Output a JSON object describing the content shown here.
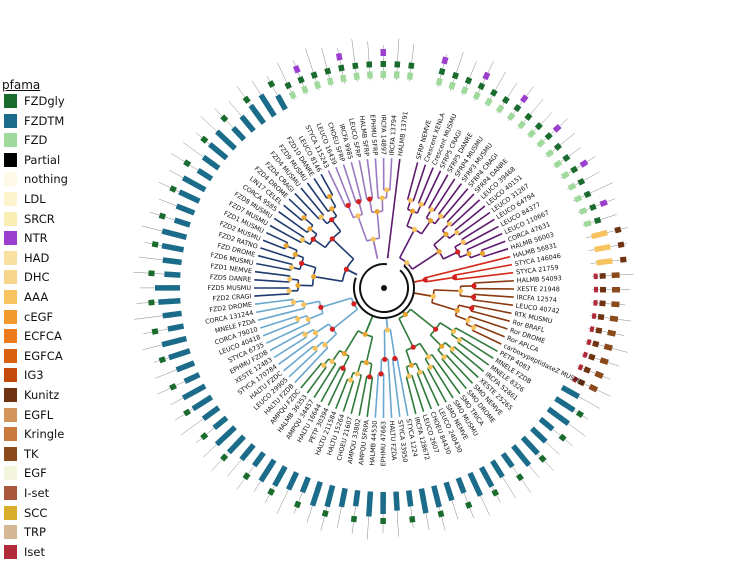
{
  "legend": {
    "title": "pfama",
    "items": [
      {
        "label": "FZDgly",
        "color": "#1a6b2e"
      },
      {
        "label": "FZDTM",
        "color": "#1b6b8a"
      },
      {
        "label": "FZD",
        "color": "#9fd99b"
      },
      {
        "label": "Partial",
        "color": "#000000"
      },
      {
        "label": "nothing",
        "color": "#fdf9e6"
      },
      {
        "label": "LDL",
        "color": "#fdf3cc"
      },
      {
        "label": "SRCR",
        "color": "#fbeeb5"
      },
      {
        "label": "NTR",
        "color": "#9b3fcf"
      },
      {
        "label": "HAD",
        "color": "#f8e0a0"
      },
      {
        "label": "DHC",
        "color": "#f7d58a"
      },
      {
        "label": "AAA",
        "color": "#f6c35e"
      },
      {
        "label": "cEGF",
        "color": "#f39a2e"
      },
      {
        "label": "ECFCA",
        "color": "#ec7b1c"
      },
      {
        "label": "EGFCA",
        "color": "#d9600f"
      },
      {
        "label": "IG3",
        "color": "#c34a08"
      },
      {
        "label": "Kunitz",
        "color": "#6e3310"
      },
      {
        "label": "EGFL",
        "color": "#d4955a"
      },
      {
        "label": "Kringle",
        "color": "#c97a3c"
      },
      {
        "label": "TK",
        "color": "#8a4a1c"
      },
      {
        "label": "EGF",
        "color": "#f2f4dc"
      },
      {
        "label": "I-set",
        "color": "#a9573a"
      },
      {
        "label": "SCC",
        "color": "#d7ad2a"
      },
      {
        "label": "TRP",
        "color": "#d4b896"
      },
      {
        "label": "Iset",
        "color": "#b02a37"
      }
    ]
  },
  "tree": {
    "clades": [
      {
        "name": "purple-sfrp",
        "color": "#5e1a6e"
      },
      {
        "name": "lavender-sfrp",
        "color": "#9a78c0"
      },
      {
        "name": "navy-fzd",
        "color": "#1f3a6e"
      },
      {
        "name": "lightblue-fzd",
        "color": "#6aa7cf"
      },
      {
        "name": "green-fzd",
        "color": "#2f7a3a"
      },
      {
        "name": "brown-ror",
        "color": "#8a3a10"
      },
      {
        "name": "red-outgroup",
        "color": "#d42a1a"
      }
    ],
    "leaves": [
      {
        "label": "SFRP NEMVE",
        "clade": 0
      },
      {
        "label": "Crescent XENLA",
        "clade": 0
      },
      {
        "label": "Crescent MUSMU",
        "clade": 0
      },
      {
        "label": "SFRP5 CRAGI",
        "clade": 0
      },
      {
        "label": "SFRP5 DANRE",
        "clade": 0
      },
      {
        "label": "SFRP4 MUSMU",
        "clade": 0
      },
      {
        "label": "SFRP3 MUSMU",
        "clade": 0
      },
      {
        "label": "SFRP4 CRAGI",
        "clade": 0
      },
      {
        "label": "SFRP4 DANRE",
        "clade": 0
      },
      {
        "label": "LEUCO 39468",
        "clade": 0
      },
      {
        "label": "LEUCO 40151",
        "clade": 0
      },
      {
        "label": "LEUCO 31267",
        "clade": 0
      },
      {
        "label": "LEUCO 64794",
        "clade": 0
      },
      {
        "label": "LEUCO 84377",
        "clade": 0
      },
      {
        "label": "LEUCO 110667",
        "clade": 0
      },
      {
        "label": "CORCA 47631",
        "clade": 0
      },
      {
        "label": "HALMB 56003",
        "clade": 0
      },
      {
        "label": "HALMB 56831",
        "clade": 6
      },
      {
        "label": "STYCA 146046",
        "clade": 6
      },
      {
        "label": "STYCA 21759",
        "clade": 6
      },
      {
        "label": "HALMB 54093",
        "clade": 5
      },
      {
        "label": "XESTE 21948",
        "clade": 5
      },
      {
        "label": "IRCFA 12574",
        "clade": 5
      },
      {
        "label": "LEUCO 40742",
        "clade": 5
      },
      {
        "label": "RTK MUSMU",
        "clade": 5
      },
      {
        "label": "Ror BRAFL",
        "clade": 5
      },
      {
        "label": "Ror DROME",
        "clade": 5
      },
      {
        "label": "Ror APLCA",
        "clade": 5
      },
      {
        "label": "carboxypeptidaseZ MUSMU",
        "clade": 5
      },
      {
        "label": "PETP 4083",
        "clade": 4
      },
      {
        "label": "MNELE FZDB",
        "clade": 4
      },
      {
        "label": "MNELE 8326",
        "clade": 4
      },
      {
        "label": "IRCFA 52861",
        "clade": 4
      },
      {
        "label": "XESTE 25265",
        "clade": 4
      },
      {
        "label": "SMO NEMVE",
        "clade": 4
      },
      {
        "label": "SMO DROME",
        "clade": 4
      },
      {
        "label": "SMO TRICA",
        "clade": 4
      },
      {
        "label": "SMO MUSMU",
        "clade": 4
      },
      {
        "label": "SMO NEMVE",
        "clade": 4
      },
      {
        "label": "LEUCO 240430",
        "clade": 4
      },
      {
        "label": "CHOEU 84430",
        "clade": 4
      },
      {
        "label": "LEUCO 2607",
        "clade": 4
      },
      {
        "label": "IRCFA 128672",
        "clade": 4
      },
      {
        "label": "STYCA 1224",
        "clade": 3
      },
      {
        "label": "STYCA 33950",
        "clade": 3
      },
      {
        "label": "HALTU FZDA",
        "clade": 3
      },
      {
        "label": "EPHMU 47663",
        "clade": 3
      },
      {
        "label": "HALMB 44530",
        "clade": 3
      },
      {
        "label": "AMPQU SFRPA",
        "clade": 4
      },
      {
        "label": "AMPQU 33802",
        "clade": 4
      },
      {
        "label": "CHOEU 21607",
        "clade": 4
      },
      {
        "label": "HALTU 15264",
        "clade": 4
      },
      {
        "label": "HALTU 211584",
        "clade": 4
      },
      {
        "label": "PETP 30394",
        "clade": 4
      },
      {
        "label": "HALTU 16644",
        "clade": 4
      },
      {
        "label": "AMPQU 34457",
        "clade": 4
      },
      {
        "label": "HALMB 36353",
        "clade": 4
      },
      {
        "label": "AMPQU FZDC",
        "clade": 4
      },
      {
        "label": "HALTU FZDB",
        "clade": 3
      },
      {
        "label": "LEUCO 29905",
        "clade": 3
      },
      {
        "label": "HALTU FZDC",
        "clade": 3
      },
      {
        "label": "STYCA 170784",
        "clade": 3
      },
      {
        "label": "XESTE 12483",
        "clade": 3
      },
      {
        "label": "EPHMU FZDB",
        "clade": 3
      },
      {
        "label": "STYCA 6735",
        "clade": 3
      },
      {
        "label": "LEUCO 40418",
        "clade": 3
      },
      {
        "label": "CORCA 79010",
        "clade": 3
      },
      {
        "label": "MNELE FZDA",
        "clade": 3
      },
      {
        "label": "CORCA 131244",
        "clade": 3
      },
      {
        "label": "FZD2 DROME",
        "clade": 3
      },
      {
        "label": "FZD2 CRAGI",
        "clade": 2
      },
      {
        "label": "FZD5 MUSMU",
        "clade": 2
      },
      {
        "label": "FZD5 DANRE",
        "clade": 2
      },
      {
        "label": "FZD1 NEMVE",
        "clade": 2
      },
      {
        "label": "FZD6 MUSMU",
        "clade": 2
      },
      {
        "label": "FZD DROME",
        "clade": 2
      },
      {
        "label": "FZD2 RATNO",
        "clade": 2
      },
      {
        "label": "FZD2 MUSMU",
        "clade": 2
      },
      {
        "label": "FZD1 MUSMU",
        "clade": 2
      },
      {
        "label": "FZD7 MUSMU",
        "clade": 2
      },
      {
        "label": "FZD8 MUSMU",
        "clade": 2
      },
      {
        "label": "CORCA 9585",
        "clade": 2
      },
      {
        "label": "LIN17 CELEL",
        "clade": 2
      },
      {
        "label": "FZD4 DROME",
        "clade": 2
      },
      {
        "label": "FZD4 CRAGI",
        "clade": 2
      },
      {
        "label": "FZD4 MUSMU",
        "clade": 2
      },
      {
        "label": "FZD9 MUSMU",
        "clade": 2
      },
      {
        "label": "FZD10 DANRE",
        "clade": 2
      },
      {
        "label": "LEUCO 8146",
        "clade": 2
      },
      {
        "label": "STYCA 115243",
        "clade": 1
      },
      {
        "label": "LEUCO 16439",
        "clade": 1
      },
      {
        "label": "CHOEU SFRP",
        "clade": 1
      },
      {
        "label": "IRCFA 9985",
        "clade": 1
      },
      {
        "label": "LEUCO SFRP",
        "clade": 1
      },
      {
        "label": "HALMB SFRP",
        "clade": 1
      },
      {
        "label": "EPHMU SFRP",
        "clade": 1
      },
      {
        "label": "IRCFA 14897",
        "clade": 1
      },
      {
        "label": "IRCFA 13794",
        "clade": 1
      },
      {
        "label": "HALMB 13791",
        "clade": 0
      }
    ]
  }
}
